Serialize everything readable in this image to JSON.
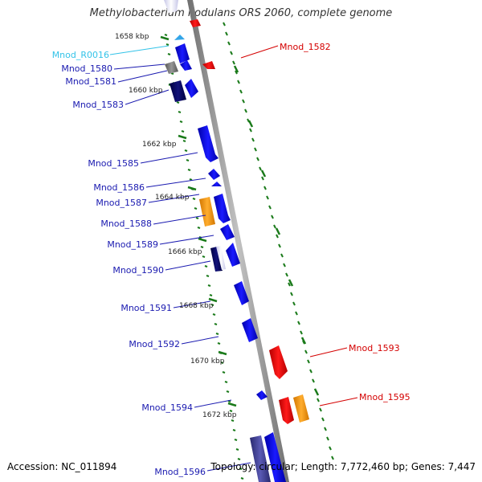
{
  "title": "Methylobacterium nodulans ORS 2060, complete genome",
  "accession": "Accession: NC_011894",
  "topology": "Topology: circular; Length: 7,772,460 bp; Genes: 7,447",
  "colors": {
    "forward_gene": "#0b0bd8",
    "reverse_gene": "#e00000",
    "label_forward": "#1a1ab0",
    "label_reverse": "#d40000",
    "label_rna": "#33c3e8",
    "tick": "#1a7a1a",
    "highlight_orange": "#f19b14",
    "dark_gene": "#0a0a55",
    "gray_gene": "#777777",
    "backbone": "#8a8a8a"
  },
  "position_labels": [
    "1658 kbp",
    "1660 kbp",
    "1662 kbp",
    "1664 kbp",
    "1666 kbp",
    "1668 kbp",
    "1670 kbp",
    "1672 kbp"
  ],
  "genes_forward": [
    "Mnod_R0016",
    "Mnod_1580",
    "Mnod_1581",
    "Mnod_1583",
    "Mnod_1585",
    "Mnod_1586",
    "Mnod_1587",
    "Mnod_1588",
    "Mnod_1589",
    "Mnod_1590",
    "Mnod_1591",
    "Mnod_1592",
    "Mnod_1594",
    "Mnod_1596"
  ],
  "genes_reverse": [
    "Mnod_1582",
    "Mnod_1593",
    "Mnod_1595"
  ]
}
